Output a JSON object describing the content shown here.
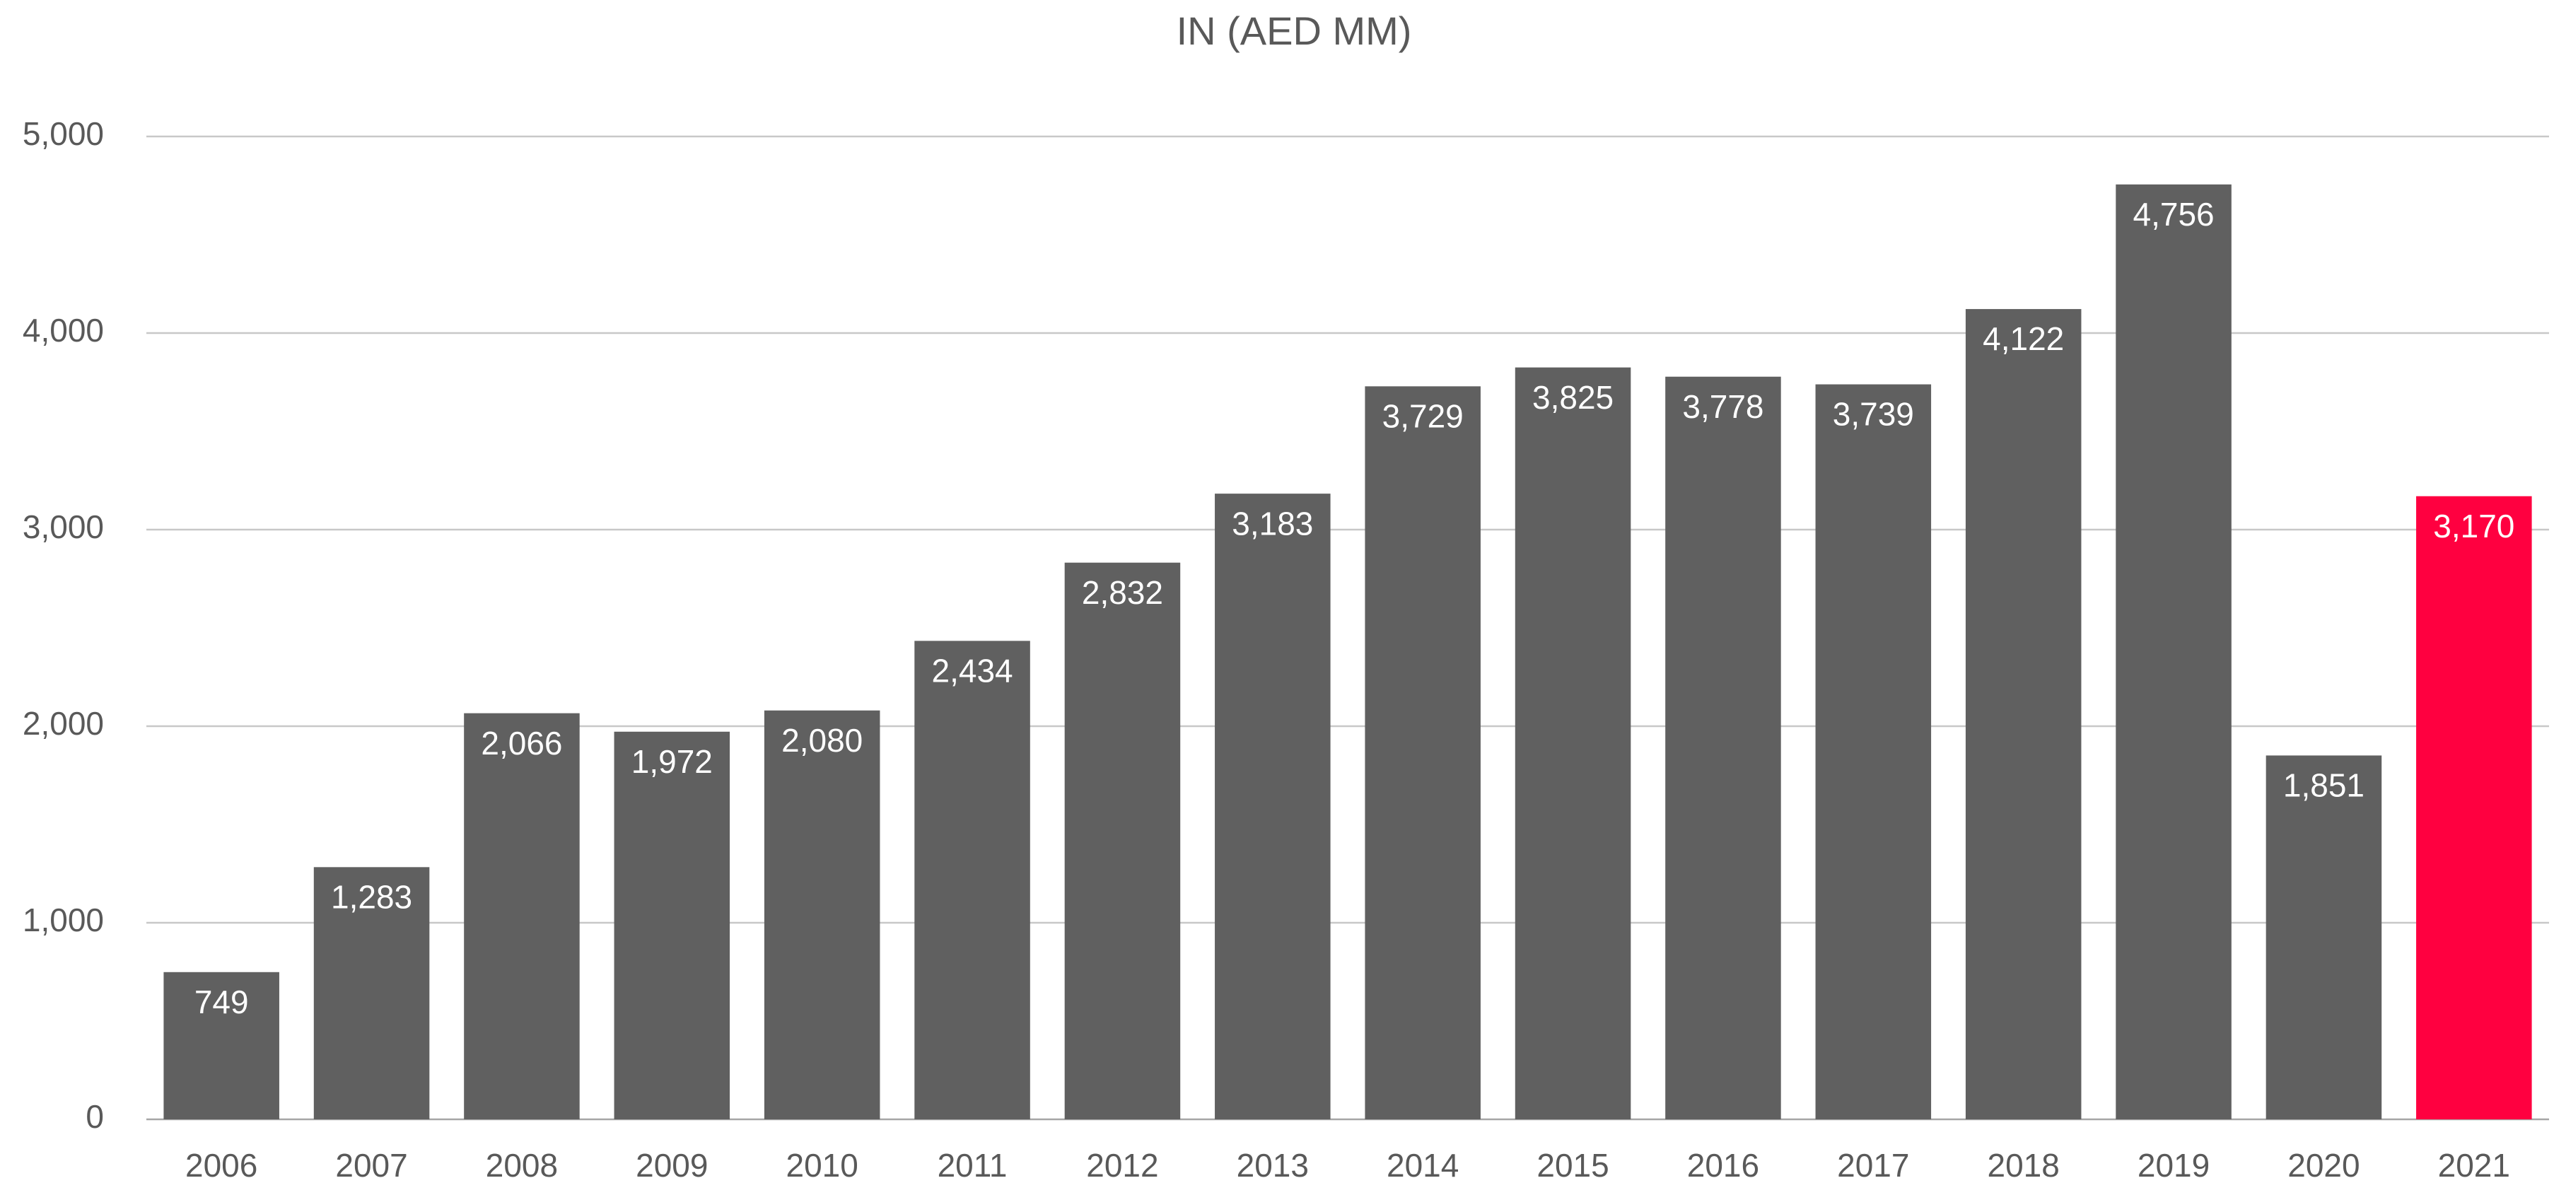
{
  "chart_data": {
    "type": "bar",
    "title": "IN (AED MM)",
    "categories": [
      "2006",
      "2007",
      "2008",
      "2009",
      "2010",
      "2011",
      "2012",
      "2013",
      "2014",
      "2015",
      "2016",
      "2017",
      "2018",
      "2019",
      "2020",
      "2021"
    ],
    "values": [
      749,
      1283,
      2066,
      1972,
      2080,
      2434,
      2832,
      3183,
      3729,
      3825,
      3778,
      3739,
      4122,
      4756,
      1851,
      3170
    ],
    "value_labels": [
      "749",
      "1,283",
      "2,066",
      "1,972",
      "2,080",
      "2,434",
      "2,832",
      "3,183",
      "3,729",
      "3,825",
      "3,778",
      "3,739",
      "4,122",
      "4,756",
      "1,851",
      "3,170"
    ],
    "colors": [
      "#606060",
      "#606060",
      "#606060",
      "#606060",
      "#606060",
      "#606060",
      "#606060",
      "#606060",
      "#606060",
      "#606060",
      "#606060",
      "#606060",
      "#606060",
      "#606060",
      "#606060",
      "#ff0040"
    ],
    "ylim": [
      0,
      5000
    ],
    "yticks": [
      0,
      {
        "value": 1000,
        "label": "1,000"
      },
      {
        "value": 2000,
        "label": "2,000"
      },
      {
        "value": 3000,
        "label": "3,000"
      },
      {
        "value": 4000,
        "label": "4,000"
      },
      {
        "value": 5000,
        "label": "5,000"
      }
    ],
    "grid": true
  }
}
